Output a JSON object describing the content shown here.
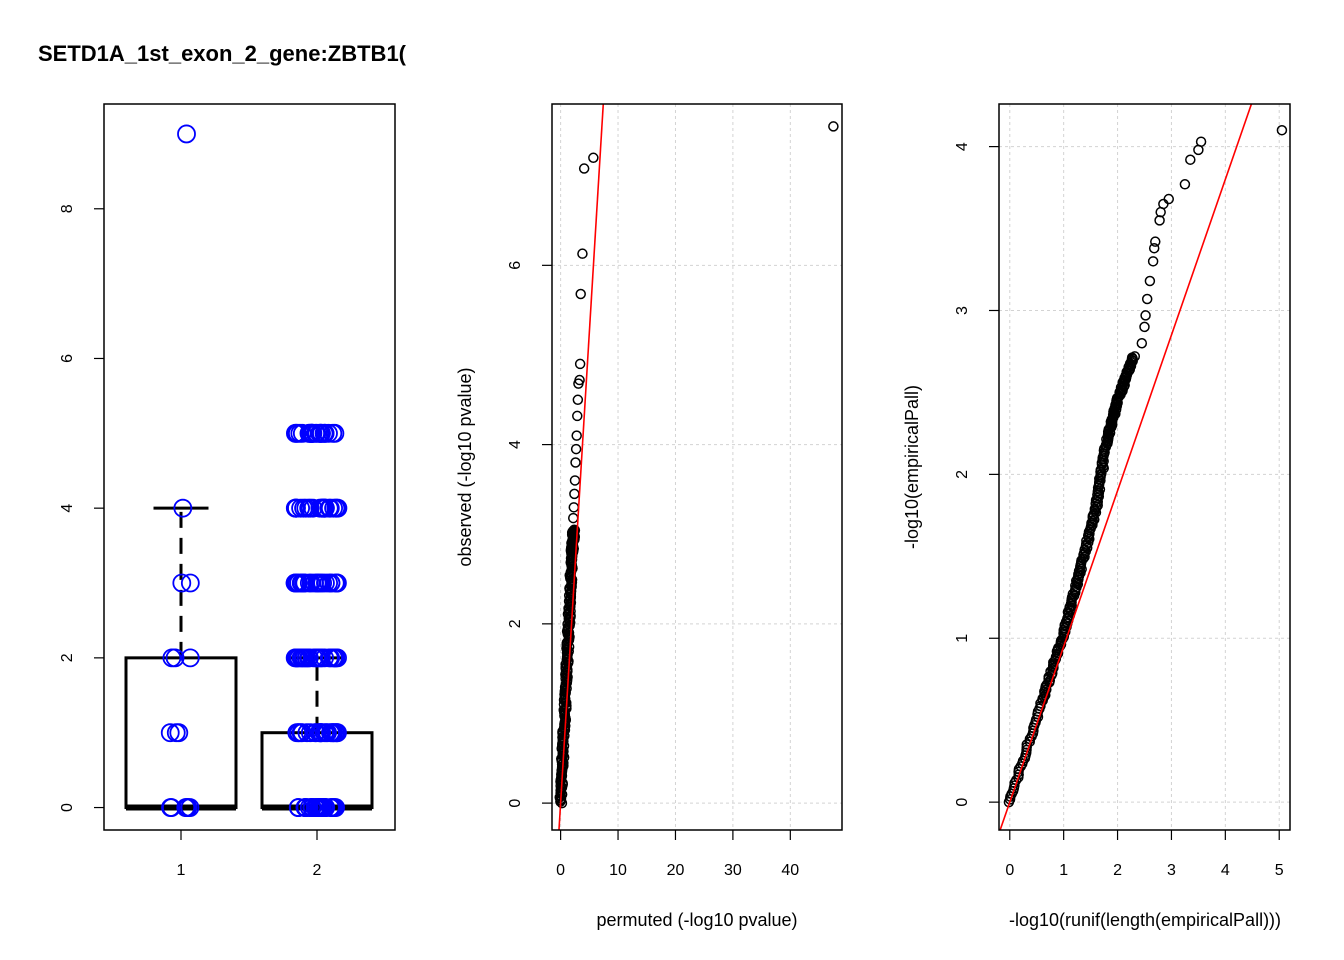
{
  "chart_data": [
    {
      "type": "box",
      "title": "SETD1A_1st_exon_2_gene:ZBTB1(",
      "categories": [
        "1",
        "2"
      ],
      "ylim": [
        -0.3,
        9.4
      ],
      "yticks": [
        "0",
        "2",
        "4",
        "6",
        "8"
      ],
      "xticks": [
        "1",
        "2"
      ],
      "boxes": [
        {
          "category": "1",
          "min": 0,
          "q1": 0,
          "median": 0,
          "q3": 2,
          "max": 4
        },
        {
          "category": "2",
          "min": 0,
          "q1": 0,
          "median": 0,
          "q3": 1,
          "max": 2
        }
      ],
      "points": [
        {
          "group": "1",
          "values": [
            9,
            4,
            3,
            3,
            2,
            2,
            2,
            1,
            1,
            1,
            0,
            0,
            0,
            0,
            0,
            0
          ]
        },
        {
          "group": "2",
          "values": [
            5,
            5,
            5,
            4,
            4,
            4,
            3,
            3,
            3,
            2,
            2,
            2,
            1,
            1,
            1,
            0,
            0,
            0
          ]
        }
      ],
      "colors": {
        "points": "#0000ff",
        "box": "#000000"
      }
    },
    {
      "type": "scatter",
      "xlabel": "permuted (-log10 pvalue)",
      "ylabel": "observed (-log10 pvalue)",
      "xlim": [
        -1.5,
        49.0
      ],
      "ylim": [
        -0.3,
        7.8
      ],
      "xticks": [
        "0",
        "10",
        "20",
        "30",
        "40"
      ],
      "yticks": [
        "0",
        "2",
        "4",
        "6"
      ],
      "grid": true,
      "reference_line": {
        "slope": 1.05,
        "intercept": 0
      },
      "outliers": [
        {
          "x": 47.5,
          "y": 7.55
        },
        {
          "x": 5.7,
          "y": 7.2
        },
        {
          "x": 4.1,
          "y": 7.08
        },
        {
          "x": 3.8,
          "y": 6.13
        },
        {
          "x": 3.5,
          "y": 5.68
        },
        {
          "x": 3.4,
          "y": 4.9
        },
        {
          "x": 3.3,
          "y": 4.72
        },
        {
          "x": 3.1,
          "y": 4.68
        },
        {
          "x": 3.0,
          "y": 4.5
        },
        {
          "x": 2.9,
          "y": 4.32
        },
        {
          "x": 2.8,
          "y": 4.1
        },
        {
          "x": 2.7,
          "y": 3.95
        },
        {
          "x": 2.6,
          "y": 3.8
        },
        {
          "x": 2.5,
          "y": 3.6
        },
        {
          "x": 2.4,
          "y": 3.45
        },
        {
          "x": 2.3,
          "y": 3.3
        },
        {
          "x": 2.2,
          "y": 3.18
        }
      ],
      "dense_curve": [
        [
          0,
          0
        ],
        [
          0.5,
          0.7
        ],
        [
          1.0,
          1.4
        ],
        [
          1.5,
          2.1
        ],
        [
          2.0,
          2.8
        ],
        [
          2.3,
          3.05
        ]
      ],
      "colors": {
        "points": "#000000",
        "line": "#ff0000",
        "grid": "#d3d3d3"
      }
    },
    {
      "type": "scatter",
      "xlabel": "-log10(runif(length(empiricalPall)))",
      "ylabel": "-log10(empiricalPall)",
      "xlim": [
        -0.2,
        5.2
      ],
      "ylim": [
        -0.17,
        4.26
      ],
      "xticks": [
        "0",
        "1",
        "2",
        "3",
        "4",
        "5"
      ],
      "yticks": [
        "0",
        "1",
        "2",
        "3",
        "4"
      ],
      "grid": true,
      "reference_line": {
        "slope": 0.95,
        "intercept": 0
      },
      "outliers": [
        {
          "x": 5.05,
          "y": 4.1
        },
        {
          "x": 3.55,
          "y": 4.03
        },
        {
          "x": 3.5,
          "y": 3.98
        },
        {
          "x": 3.35,
          "y": 3.92
        },
        {
          "x": 3.25,
          "y": 3.77
        },
        {
          "x": 2.95,
          "y": 3.68
        },
        {
          "x": 2.85,
          "y": 3.65
        },
        {
          "x": 2.8,
          "y": 3.6
        },
        {
          "x": 2.78,
          "y": 3.55
        },
        {
          "x": 2.7,
          "y": 3.42
        },
        {
          "x": 2.68,
          "y": 3.38
        },
        {
          "x": 2.66,
          "y": 3.3
        },
        {
          "x": 2.6,
          "y": 3.18
        },
        {
          "x": 2.55,
          "y": 3.07
        },
        {
          "x": 2.52,
          "y": 2.97
        },
        {
          "x": 2.5,
          "y": 2.9
        },
        {
          "x": 2.45,
          "y": 2.8
        }
      ],
      "dense_curve": [
        [
          0,
          0
        ],
        [
          0.6,
          0.62
        ],
        [
          1.0,
          1.03
        ],
        [
          1.3,
          1.4
        ],
        [
          1.6,
          1.8
        ],
        [
          1.8,
          2.2
        ],
        [
          2.0,
          2.45
        ],
        [
          2.3,
          2.72
        ]
      ],
      "colors": {
        "points": "#000000",
        "line": "#ff0000",
        "grid": "#d3d3d3"
      }
    }
  ]
}
